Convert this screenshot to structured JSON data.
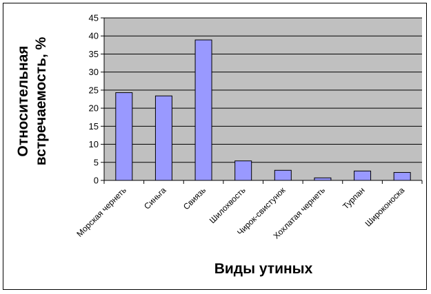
{
  "chart_data": {
    "type": "bar",
    "categories": [
      "Морская чернеть",
      "Синьга",
      "Свиязь",
      "Шилохвость",
      "Чирок-свистунок",
      "Хохлатая чернеть",
      "Турпан",
      "Широконоска"
    ],
    "values": [
      24.3,
      23.4,
      38.9,
      5.4,
      2.8,
      0.7,
      2.6,
      2.2
    ],
    "title": "",
    "xlabel": "Виды утиных",
    "ylabel_lines": [
      "Относительная",
      "встречаемость, %"
    ],
    "ylim": [
      0,
      45
    ],
    "yticks": [
      0,
      5,
      10,
      15,
      20,
      25,
      30,
      35,
      40,
      45
    ],
    "grid": true,
    "legend": "none",
    "colors": {
      "plot_background": "#c0c0c0",
      "bar_fill": "#9999ff",
      "bar_stroke": "#000000",
      "grid": "#000000"
    }
  }
}
